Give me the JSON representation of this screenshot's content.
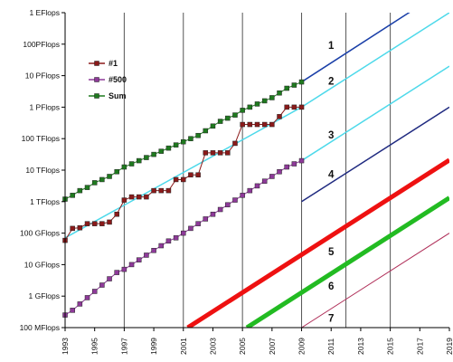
{
  "chart_data": {
    "type": "line",
    "title": "",
    "xlabel": "",
    "ylabel": "",
    "y_scale": "log",
    "y_ticks": [
      "1 EFlops",
      "100PFlops",
      "10 PFlops",
      "1 PFlops",
      "100 TFlops",
      "10 TFlops",
      "1 TFlops",
      "100 GFlops",
      "10 GFlops",
      "1 GFlops",
      "100 MFlops"
    ],
    "x_ticks": [
      "1993",
      "1995",
      "1997",
      "1999",
      "2001",
      "2003",
      "2005",
      "2007",
      "2009",
      "2011",
      "2013",
      "2015",
      "2017",
      "2019"
    ],
    "xlim": [
      1993,
      2019
    ],
    "ylim_flops": [
      "100 MFlops",
      "1 EFlops"
    ],
    "grid": "vertical lines at selected years",
    "legend_position": "top-left",
    "series": [
      {
        "name": "#1",
        "color": "#8b1a1a",
        "marker": "square",
        "x": [
          1993.0,
          1993.5,
          1994.0,
          1994.5,
          1995.0,
          1995.5,
          1996.0,
          1996.5,
          1997.0,
          1997.5,
          1998.0,
          1998.5,
          1999.0,
          1999.5,
          2000.0,
          2000.5,
          2001.0,
          2001.5,
          2002.0,
          2002.5,
          2003.0,
          2003.5,
          2004.0,
          2004.5,
          2005.0,
          2005.5,
          2006.0,
          2006.5,
          2007.0,
          2007.5,
          2008.0,
          2008.5,
          2009.0
        ],
        "y_log10_flops": [
          10.77,
          11.15,
          11.17,
          11.3,
          11.3,
          11.3,
          11.35,
          11.6,
          12.05,
          12.15,
          12.15,
          12.15,
          12.35,
          12.35,
          12.35,
          12.7,
          12.7,
          12.85,
          12.85,
          13.55,
          13.55,
          13.55,
          13.55,
          13.85,
          14.45,
          14.45,
          14.45,
          14.45,
          14.45,
          14.7,
          15.0,
          15.0,
          15.0
        ]
      },
      {
        "name": "#500",
        "color": "#8e3a99",
        "marker": "square",
        "x": [
          1993.0,
          1993.5,
          1994.0,
          1994.5,
          1995.0,
          1995.5,
          1996.0,
          1996.5,
          1997.0,
          1997.5,
          1998.0,
          1998.5,
          1999.0,
          1999.5,
          2000.0,
          2000.5,
          2001.0,
          2001.5,
          2002.0,
          2002.5,
          2003.0,
          2003.5,
          2004.0,
          2004.5,
          2005.0,
          2005.5,
          2006.0,
          2006.5,
          2007.0,
          2007.5,
          2008.0,
          2008.5,
          2009.0
        ],
        "y_log10_flops": [
          8.4,
          8.55,
          8.75,
          8.95,
          9.15,
          9.35,
          9.55,
          9.75,
          9.85,
          10.0,
          10.15,
          10.3,
          10.45,
          10.6,
          10.75,
          10.85,
          11.0,
          11.15,
          11.3,
          11.45,
          11.6,
          11.75,
          11.9,
          12.05,
          12.2,
          12.35,
          12.5,
          12.65,
          12.8,
          12.95,
          13.1,
          13.2,
          13.3
        ]
      },
      {
        "name": "Sum",
        "color": "#1f7a1f",
        "marker": "square",
        "x": [
          1993.0,
          1993.5,
          1994.0,
          1994.5,
          1995.0,
          1995.5,
          1996.0,
          1996.5,
          1997.0,
          1997.5,
          1998.0,
          1998.5,
          1999.0,
          1999.5,
          2000.0,
          2000.5,
          2001.0,
          2001.5,
          2002.0,
          2002.5,
          2003.0,
          2003.5,
          2004.0,
          2004.5,
          2005.0,
          2005.5,
          2006.0,
          2006.5,
          2007.0,
          2007.5,
          2008.0,
          2008.5,
          2009.0
        ],
        "y_log10_flops": [
          12.08,
          12.2,
          12.35,
          12.45,
          12.6,
          12.7,
          12.8,
          12.95,
          13.1,
          13.2,
          13.3,
          13.4,
          13.5,
          13.6,
          13.7,
          13.8,
          13.9,
          14.0,
          14.1,
          14.25,
          14.4,
          14.55,
          14.65,
          14.75,
          14.9,
          15.0,
          15.1,
          15.2,
          15.3,
          15.45,
          15.6,
          15.7,
          15.8
        ]
      }
    ],
    "trend_lines": [
      {
        "label": "1",
        "color": "#1a3fa8",
        "width": 1.5,
        "from": [
          2009,
          15.8
        ],
        "to": [
          2019,
          18.83
        ]
      },
      {
        "label": "2",
        "color": "#4dd9ea",
        "width": 1.5,
        "from": [
          2009,
          15.0
        ],
        "to": [
          2019,
          18.0
        ]
      },
      {
        "label": "3",
        "color": "#4dd9ea",
        "width": 1.5,
        "from": [
          2009,
          13.3
        ],
        "to": [
          2019,
          16.3
        ]
      },
      {
        "label": "4",
        "color": "#1f2a80",
        "width": 1.5,
        "from": [
          2009,
          12.0
        ],
        "to": [
          2019,
          15.0
        ]
      },
      {
        "label": "5",
        "color": "#ee1111",
        "width": 5,
        "from": [
          2001.3,
          8.0
        ],
        "to": [
          2019,
          13.32
        ]
      },
      {
        "label": "6",
        "color": "#22bb22",
        "width": 5,
        "from": [
          2005.3,
          8.0
        ],
        "to": [
          2019,
          12.12
        ]
      },
      {
        "label": "7",
        "color": "#b0305a",
        "width": 1,
        "from": [
          2009,
          8.0
        ],
        "to": [
          2019,
          11.0
        ]
      }
    ],
    "fit_lines": [
      {
        "color": "#4dd9ea",
        "from": [
          1993,
          10.85
        ],
        "to": [
          2009,
          15.0
        ]
      }
    ],
    "label_positions": [
      {
        "label": "1",
        "x": 2010.8,
        "y": 16.85
      },
      {
        "label": "2",
        "x": 2010.8,
        "y": 15.72
      },
      {
        "label": "3",
        "x": 2010.8,
        "y": 14.0
      },
      {
        "label": "4",
        "x": 2010.8,
        "y": 12.75
      },
      {
        "label": "5",
        "x": 2010.8,
        "y": 10.3
      },
      {
        "label": "6",
        "x": 2010.8,
        "y": 9.2
      },
      {
        "label": "7",
        "x": 2010.8,
        "y": 8.18
      }
    ],
    "vertical_gridlines_years": [
      1997,
      2001,
      2005,
      2009,
      2012,
      2015
    ]
  }
}
